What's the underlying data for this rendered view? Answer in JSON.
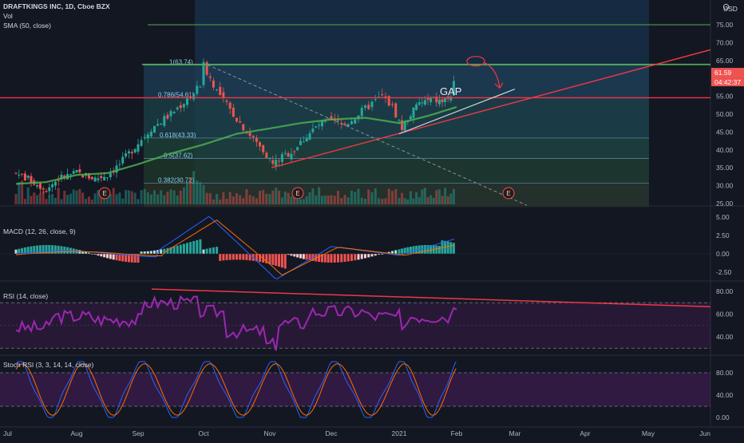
{
  "header": {
    "title": "DRAFTKINGS INC, 1D, Cboe BZX",
    "vol_label": "Vol",
    "sma_label": "SMA (50, close)",
    "currency": "USD"
  },
  "colors": {
    "background": "#131722",
    "up": "#26a69a",
    "down": "#ef5350",
    "sma": "#4caf50",
    "trendline": "#f23645",
    "fib_zone": "#1e3a5f",
    "macd_line": "#2962ff",
    "signal_line": "#ff6d00",
    "rsi_line": "#9c27b0",
    "stoch_k": "#2962ff",
    "stoch_d": "#ff6d00"
  },
  "price_axis": {
    "ticks": [
      "75.00",
      "70.00",
      "65.00",
      "60.00",
      "55.00",
      "50.00",
      "45.00",
      "40.00",
      "35.00",
      "30.00",
      "25.00"
    ],
    "last_price": "61.59",
    "countdown": "04:42:37"
  },
  "fib_labels": [
    "1(63.74)",
    "0.786(54.61)",
    "0.618(43.33)",
    "0.5(37.62)",
    "0.382(30.72)"
  ],
  "annotations": {
    "gap": "GAP"
  },
  "earnings_markers": [
    "E",
    "E",
    "E"
  ],
  "macd": {
    "label": "MACD (12, 26, close, 9)",
    "ticks": [
      "5.00",
      "2.50",
      "0.00",
      "-2.50"
    ]
  },
  "rsi": {
    "label": "RSI (14, close)",
    "ticks": [
      "80.00",
      "60.00",
      "40.00"
    ]
  },
  "stoch": {
    "label": "Stoch RSI (3, 3, 14, 14, close)",
    "ticks": [
      "80.00",
      "40.00",
      "0.00"
    ]
  },
  "time_axis": [
    "Jul",
    "Aug",
    "Sep",
    "Oct",
    "Nov",
    "Dec",
    "2021",
    "Feb",
    "Mar",
    "Apr",
    "May",
    "Jun"
  ],
  "chart_data": {
    "type": "line",
    "title": "DRAFTKINGS INC, 1D, Cboe BZX",
    "series": [
      {
        "name": "SMA (50, close)",
        "x": [
          "Jul",
          "Aug",
          "Sep",
          "Oct",
          "Nov",
          "Dec",
          "2021",
          "Feb"
        ],
        "values": [
          30.5,
          33.0,
          36.0,
          41.5,
          46.0,
          48.5,
          47.5,
          52.0
        ]
      }
    ],
    "close_path": {
      "x": [
        "Jul",
        "Aug",
        "Sep",
        "Oct",
        "Nov",
        "Dec",
        "2021",
        "Feb"
      ],
      "values": [
        33.5,
        34.0,
        42.0,
        63.5,
        36.0,
        48.0,
        48.0,
        61.59
      ]
    },
    "ylim": [
      24,
      79
    ],
    "xlabel": "",
    "ylabel": ""
  }
}
